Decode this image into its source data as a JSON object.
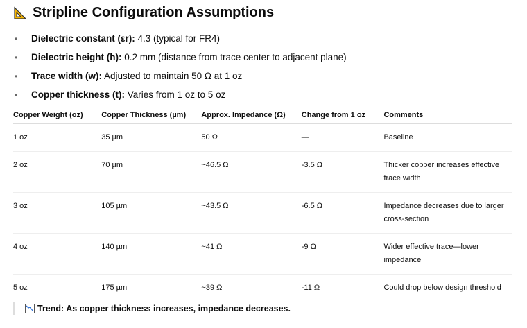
{
  "title": "Stripline Configuration Assumptions",
  "title_icon": "triangular-ruler-icon",
  "bullets": [
    {
      "label": "Dielectric constant (εr)",
      "sep": ":",
      "text": " 4.3 (typical for FR4)"
    },
    {
      "label": "Dielectric height (h):",
      "sep": "",
      "text": " 0.2 mm (distance from trace center to adjacent plane)"
    },
    {
      "label": "Trace width (w):",
      "sep": "",
      "text": " Adjusted to maintain 50 Ω at 1 oz"
    },
    {
      "label": "Copper thickness (t):",
      "sep": "",
      "text": " Varies from 1 oz to 5 oz"
    }
  ],
  "table": {
    "headers": [
      "Copper Weight (oz)",
      "Copper Thickness (µm)",
      "Approx. Impedance (Ω)",
      "Change from 1 oz",
      "Comments"
    ],
    "rows": [
      [
        "1 oz",
        "35 µm",
        "50 Ω",
        "—",
        "Baseline"
      ],
      [
        "2 oz",
        "70 µm",
        "~46.5 Ω",
        "-3.5 Ω",
        "Thicker copper increases effective trace width"
      ],
      [
        "3 oz",
        "105 µm",
        "~43.5 Ω",
        "-6.5 Ω",
        "Impedance decreases due to larger cross-section"
      ],
      [
        "4 oz",
        "140 µm",
        "~41 Ω",
        "-9 Ω",
        "Wider effective trace—lower impedance"
      ],
      [
        "5 oz",
        "175 µm",
        "~39 Ω",
        "-11 Ω",
        "Could drop below design threshold"
      ]
    ]
  },
  "trend": {
    "icon": "chart-decreasing-icon",
    "text": "Trend: As copper thickness increases, impedance decreases."
  }
}
